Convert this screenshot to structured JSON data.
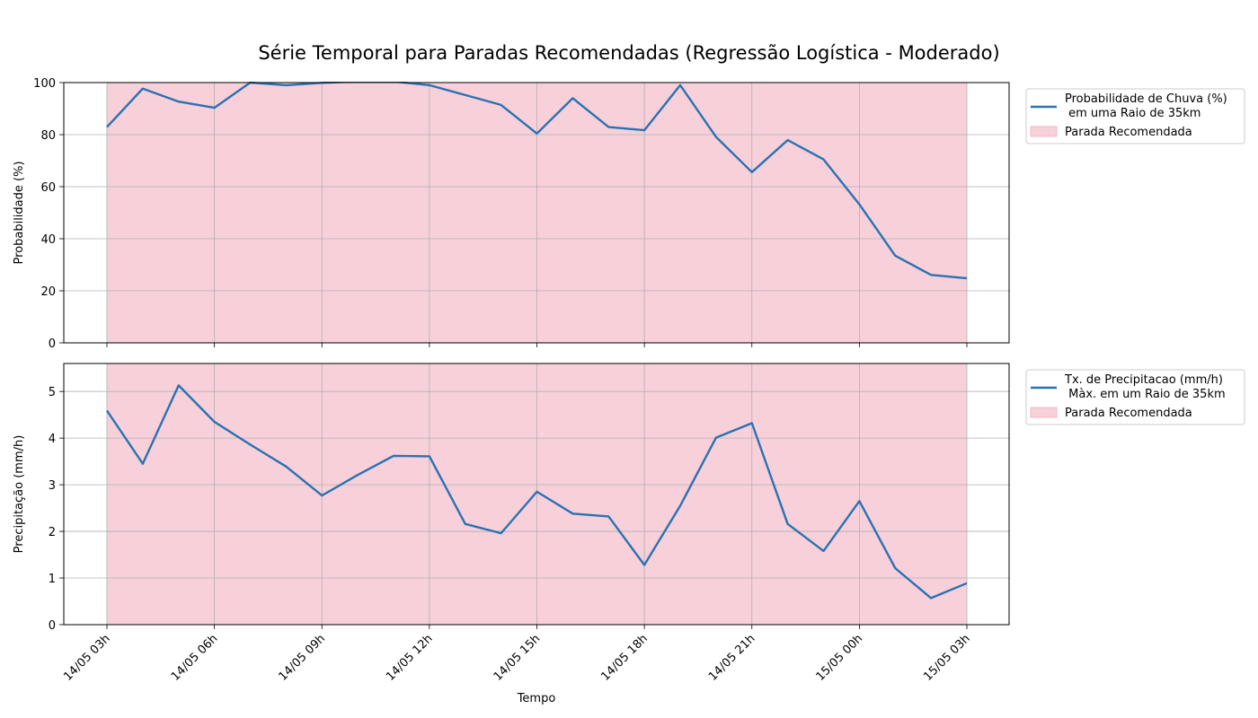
{
  "chart_data": {
    "type": "line",
    "title": "Série Temporal para Paradas Recomendadas (Regressão Logística - Moderado)",
    "xlabel": "Tempo",
    "x_tick_labels": [
      "14/05 03h",
      "14/05 06h",
      "14/05 09h",
      "14/05 12h",
      "14/05 15h",
      "14/05 18h",
      "14/05 21h",
      "15/05 00h",
      "15/05 03h"
    ],
    "x": [
      "14/05 03h",
      "14/05 04h",
      "14/05 05h",
      "14/05 06h",
      "14/05 07h",
      "14/05 08h",
      "14/05 09h",
      "14/05 10h",
      "14/05 11h",
      "14/05 12h",
      "14/05 13h",
      "14/05 14h",
      "14/05 15h",
      "14/05 16h",
      "14/05 17h",
      "14/05 18h",
      "14/05 19h",
      "14/05 20h",
      "14/05 21h",
      "14/05 22h",
      "14/05 23h",
      "15/05 00h",
      "15/05 01h",
      "15/05 02h",
      "15/05 03h"
    ],
    "shaded_region": {
      "label": "Parada Recomendada",
      "from": "14/05 03h",
      "to": "15/05 03h",
      "color": "#f8d0da"
    },
    "line_color": "#2a72b2",
    "grid": true,
    "legend_position": "outside-right",
    "panels": [
      {
        "ylabel": "Probabilidade (%)",
        "ylim": [
          0,
          100
        ],
        "yticks": [
          0,
          20,
          40,
          60,
          80,
          100
        ],
        "series": [
          {
            "name": "Probabilidade de Chuva (%)\n em uma Raio de 35km",
            "values": [
              82.9,
              97.7,
              92.7,
              90.3,
              100,
              99,
              99.9,
              100.4,
              100.4,
              99,
              95.2,
              91.4,
              80.4,
              94,
              82.9,
              81.7,
              99,
              79.1,
              65.6,
              77.9,
              70.5,
              53.2,
              33.5,
              26.1,
              24.8
            ]
          }
        ]
      },
      {
        "ylabel": "Precipitação (mm/h)",
        "ylim": [
          0,
          5.6
        ],
        "yticks": [
          0,
          1,
          2,
          3,
          4,
          5
        ],
        "series": [
          {
            "name": "Tx. de Precipitacao (mm/h)\n Màx. em um Raio de 35km",
            "values": [
              4.59,
              3.45,
              5.13,
              4.35,
              3.86,
              3.39,
              2.77,
              3.21,
              3.62,
              3.61,
              2.16,
              1.96,
              2.85,
              2.38,
              2.32,
              1.28,
              2.55,
              4.01,
              4.32,
              2.16,
              1.58,
              2.65,
              1.21,
              0.57,
              0.89
            ]
          }
        ]
      }
    ]
  }
}
